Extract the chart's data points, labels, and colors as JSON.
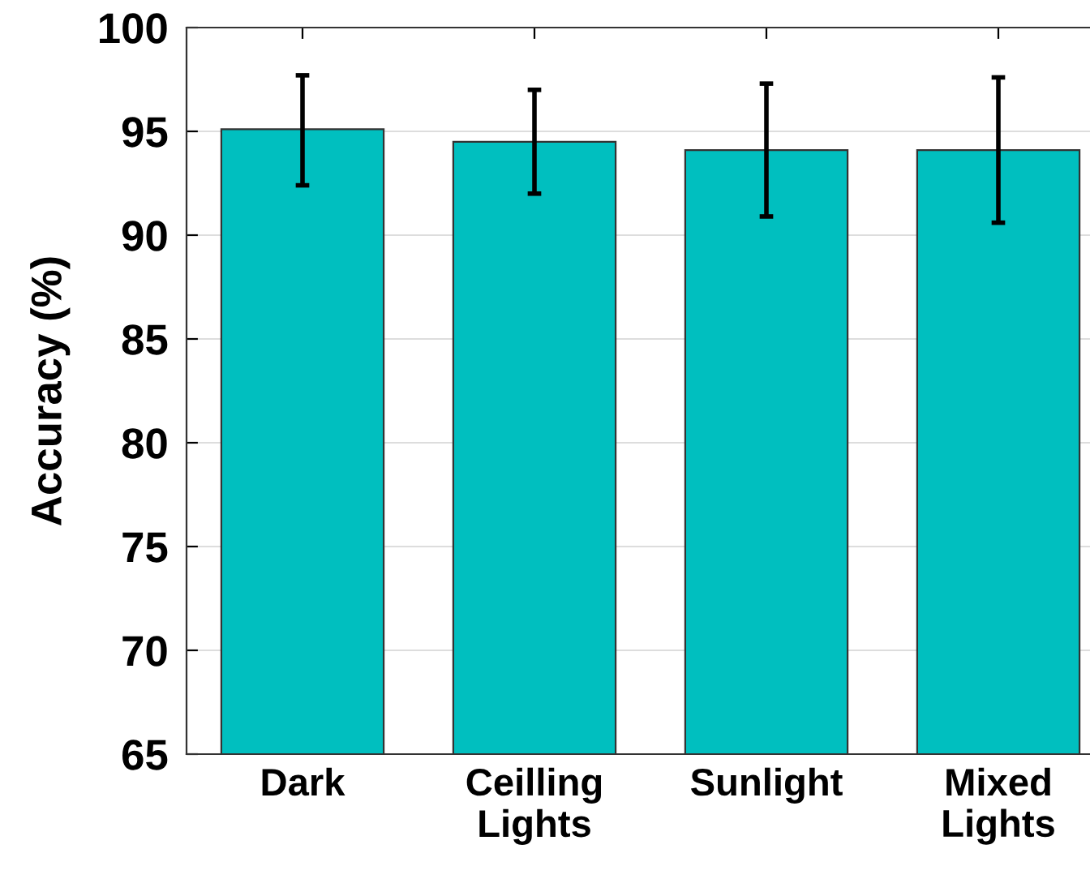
{
  "chart_data": {
    "type": "bar",
    "ylabel": "Accuracy (%)",
    "categories": [
      "Dark",
      "Ceilling Lights",
      "Sunlight",
      "Mixed Lights"
    ],
    "values": [
      95.1,
      94.5,
      94.1,
      94.1
    ],
    "errors": [
      [
        92.4,
        97.7
      ],
      [
        92.0,
        97.0
      ],
      [
        90.9,
        97.3
      ],
      [
        90.6,
        97.6
      ]
    ],
    "color": "#00bfbf",
    "ylim": [
      65,
      100
    ],
    "yticks": [
      65,
      70,
      75,
      80,
      85,
      90,
      95,
      100
    ],
    "grid": "y"
  }
}
